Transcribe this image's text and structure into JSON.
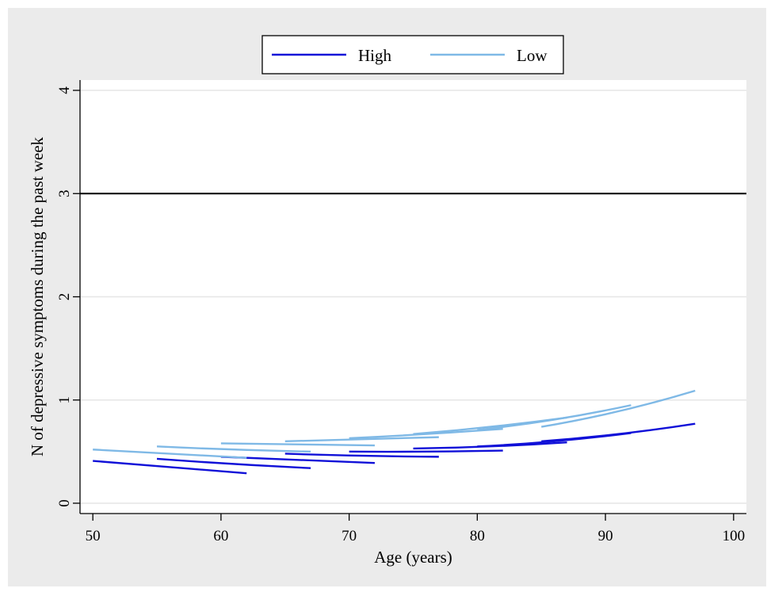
{
  "chart_data": {
    "type": "line",
    "title": "",
    "xlabel": "Age (years)",
    "ylabel": "N of depressive symptoms during the past week",
    "xlim": [
      49,
      101
    ],
    "ylim": [
      -0.1,
      4.1
    ],
    "xticks": [
      50,
      60,
      70,
      80,
      90,
      100
    ],
    "yticks": [
      0,
      1,
      2,
      3,
      4
    ],
    "grid": "horizontal",
    "legend_position": "top-center",
    "reference_line": {
      "y": 3,
      "color": "#000000"
    },
    "legend": [
      {
        "label": "High",
        "color": "#1010d8"
      },
      {
        "label": "Low",
        "color": "#7fb9e6"
      }
    ],
    "series": [
      {
        "group": "High",
        "color": "#1010d8",
        "x": [
          50,
          56,
          62
        ],
        "y": [
          0.41,
          0.35,
          0.29
        ]
      },
      {
        "group": "High",
        "color": "#1010d8",
        "x": [
          55,
          61,
          67
        ],
        "y": [
          0.43,
          0.38,
          0.34
        ]
      },
      {
        "group": "High",
        "color": "#1010d8",
        "x": [
          60,
          66,
          72
        ],
        "y": [
          0.45,
          0.42,
          0.39
        ]
      },
      {
        "group": "High",
        "color": "#1010d8",
        "x": [
          65,
          71,
          77
        ],
        "y": [
          0.48,
          0.46,
          0.45
        ]
      },
      {
        "group": "High",
        "color": "#1010d8",
        "x": [
          70,
          76,
          82
        ],
        "y": [
          0.5,
          0.5,
          0.51
        ]
      },
      {
        "group": "High",
        "color": "#1010d8",
        "x": [
          75,
          81,
          87
        ],
        "y": [
          0.53,
          0.55,
          0.59
        ]
      },
      {
        "group": "High",
        "color": "#1010d8",
        "x": [
          80,
          86,
          92
        ],
        "y": [
          0.55,
          0.6,
          0.68
        ]
      },
      {
        "group": "High",
        "color": "#1010d8",
        "x": [
          85,
          91,
          97
        ],
        "y": [
          0.6,
          0.67,
          0.77
        ]
      },
      {
        "group": "Low",
        "color": "#7fb9e6",
        "x": [
          50,
          56,
          62
        ],
        "y": [
          0.52,
          0.48,
          0.44
        ]
      },
      {
        "group": "Low",
        "color": "#7fb9e6",
        "x": [
          55,
          61,
          67
        ],
        "y": [
          0.55,
          0.52,
          0.5
        ]
      },
      {
        "group": "Low",
        "color": "#7fb9e6",
        "x": [
          60,
          66,
          72
        ],
        "y": [
          0.58,
          0.57,
          0.56
        ]
      },
      {
        "group": "Low",
        "color": "#7fb9e6",
        "x": [
          65,
          71,
          77
        ],
        "y": [
          0.6,
          0.62,
          0.64
        ]
      },
      {
        "group": "Low",
        "color": "#7fb9e6",
        "x": [
          70,
          76,
          82
        ],
        "y": [
          0.63,
          0.67,
          0.72
        ]
      },
      {
        "group": "Low",
        "color": "#7fb9e6",
        "x": [
          75,
          81,
          87
        ],
        "y": [
          0.67,
          0.74,
          0.83
        ]
      },
      {
        "group": "Low",
        "color": "#7fb9e6",
        "x": [
          80,
          86,
          92
        ],
        "y": [
          0.71,
          0.81,
          0.95
        ]
      },
      {
        "group": "Low",
        "color": "#7fb9e6",
        "x": [
          85,
          91,
          97
        ],
        "y": [
          0.74,
          0.89,
          1.09
        ]
      }
    ]
  }
}
